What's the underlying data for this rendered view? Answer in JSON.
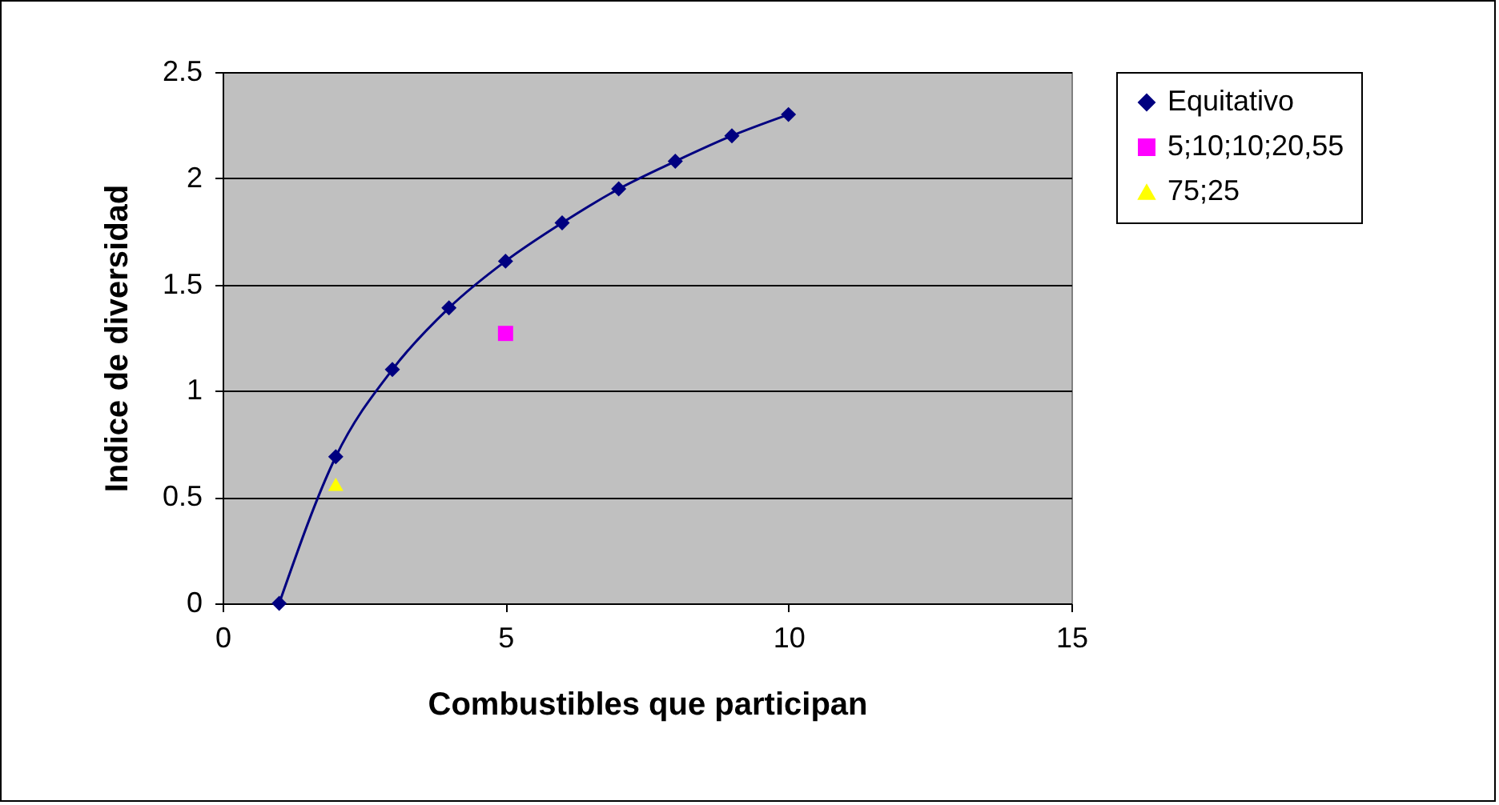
{
  "chart_data": {
    "type": "line",
    "xlabel": "Combustibles que participan",
    "ylabel": "Indice de diversidad",
    "xlim": [
      0,
      15
    ],
    "xticks": [
      0,
      5,
      10,
      15
    ],
    "ylim": [
      0,
      2.5
    ],
    "yticks": [
      {
        "value": 0,
        "label": "0"
      },
      0.5,
      {
        "value": 1,
        "label": "1"
      },
      1.5,
      {
        "value": 2,
        "label": "2"
      },
      2.5
    ],
    "grid": "y",
    "legend": "right",
    "series": [
      {
        "name": "Equitativo",
        "marker": "diamond",
        "color": "#000080",
        "x": [
          1,
          2,
          3,
          4,
          5,
          6,
          7,
          8,
          9,
          10
        ],
        "values": [
          0,
          0.69,
          1.1,
          1.39,
          1.61,
          1.79,
          1.95,
          2.08,
          2.2,
          2.3
        ]
      },
      {
        "name": "5;10;10;20,55",
        "type": "scatter",
        "marker": "square",
        "color": "#ff00ff",
        "x": [
          5
        ],
        "values": [
          1.27
        ]
      },
      {
        "name": "75;25",
        "type": "scatter",
        "marker": "triangle",
        "color": "#ffff00",
        "x": [
          2
        ],
        "values": [
          0.56
        ]
      }
    ]
  }
}
